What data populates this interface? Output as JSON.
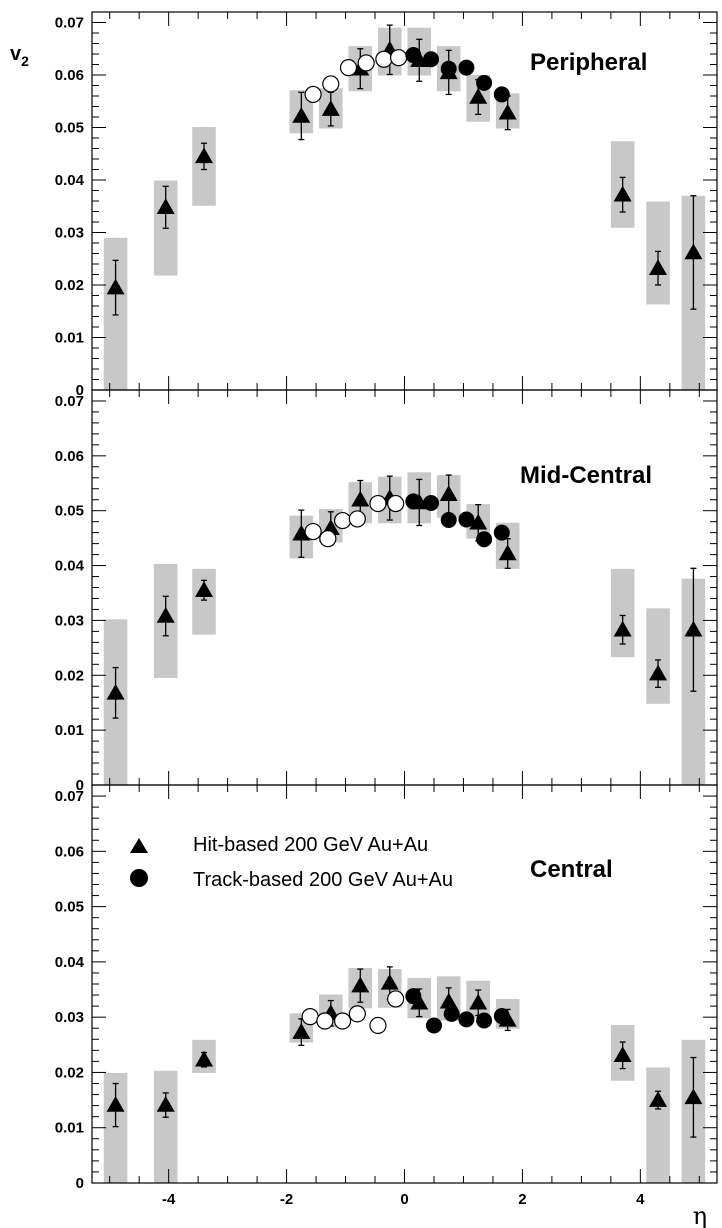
{
  "chart_data": {
    "type": "scatter",
    "xlabel": "η",
    "ylabel": "v",
    "ylabel_subscript": "2",
    "xlim": [
      -5.3,
      5.3
    ],
    "ylim": [
      0,
      0.072
    ],
    "x_tick_labels": [
      "-4",
      "-2",
      "0",
      "2",
      "4"
    ],
    "y_tick_labels": [
      "0",
      "0.01",
      "0.02",
      "0.03",
      "0.04",
      "0.05",
      "0.06",
      "0.07"
    ],
    "colors": {
      "systematic_band": "#c8c8c8",
      "marker": "#000000",
      "open_marker_fill": "#ffffff"
    },
    "legend": [
      {
        "marker": "triangle",
        "label": "Hit-based 200 GeV Au+Au"
      },
      {
        "marker": "circle",
        "label": "Track-based 200 GeV Au+Au"
      }
    ],
    "panels": [
      {
        "title": "Peripheral",
        "hit_based": [
          {
            "x": -4.9,
            "y": 0.0195,
            "err": 0.0052,
            "sys": [
              0.0,
              0.029
            ]
          },
          {
            "x": -4.05,
            "y": 0.0348,
            "err": 0.004,
            "sys": [
              0.0218,
              0.0399
            ]
          },
          {
            "x": -3.4,
            "y": 0.0445,
            "err": 0.0025,
            "sys": [
              0.0351,
              0.0501
            ]
          },
          {
            "x": -1.75,
            "y": 0.0522,
            "err": 0.0045,
            "sys": [
              0.0489,
              0.0571
            ]
          },
          {
            "x": -1.25,
            "y": 0.0535,
            "err": 0.0032,
            "sys": [
              0.0498,
              0.0575
            ]
          },
          {
            "x": -0.75,
            "y": 0.0612,
            "err": 0.0038,
            "sys": [
              0.0569,
              0.0655
            ]
          },
          {
            "x": -0.25,
            "y": 0.0648,
            "err": 0.0047,
            "sys": [
              0.0599,
              0.069
            ]
          },
          {
            "x": 0.25,
            "y": 0.0628,
            "err": 0.004,
            "sys": [
              0.0599,
              0.069
            ]
          },
          {
            "x": 0.75,
            "y": 0.0605,
            "err": 0.0042,
            "sys": [
              0.0569,
              0.0655
            ]
          },
          {
            "x": 1.25,
            "y": 0.0558,
            "err": 0.0033,
            "sys": [
              0.0511,
              0.06
            ]
          },
          {
            "x": 1.75,
            "y": 0.0528,
            "err": 0.0032,
            "sys": [
              0.0498,
              0.0565
            ]
          },
          {
            "x": 3.7,
            "y": 0.0372,
            "err": 0.0033,
            "sys": [
              0.0309,
              0.0474
            ]
          },
          {
            "x": 4.3,
            "y": 0.0232,
            "err": 0.0032,
            "sys": [
              0.0163,
              0.0359
            ]
          },
          {
            "x": 4.9,
            "y": 0.0262,
            "err": 0.0108,
            "sys": [
              0.0,
              0.037
            ]
          }
        ],
        "track_based_open": [
          {
            "x": -1.55,
            "y": 0.0563
          },
          {
            "x": -1.25,
            "y": 0.0583
          },
          {
            "x": -0.95,
            "y": 0.0614
          },
          {
            "x": -0.65,
            "y": 0.0623
          },
          {
            "x": -0.35,
            "y": 0.063
          },
          {
            "x": -0.1,
            "y": 0.0633
          }
        ],
        "track_based_filled": [
          {
            "x": 0.15,
            "y": 0.0638
          },
          {
            "x": 0.45,
            "y": 0.063
          },
          {
            "x": 0.75,
            "y": 0.0612
          },
          {
            "x": 1.05,
            "y": 0.0614
          },
          {
            "x": 1.35,
            "y": 0.0585
          },
          {
            "x": 1.65,
            "y": 0.0563
          }
        ]
      },
      {
        "title": "Mid-Central",
        "hit_based": [
          {
            "x": -4.9,
            "y": 0.0168,
            "err": 0.0046,
            "sys": [
              0.0,
              0.0302
            ]
          },
          {
            "x": -4.05,
            "y": 0.0308,
            "err": 0.0036,
            "sys": [
              0.0195,
              0.0403
            ]
          },
          {
            "x": -3.4,
            "y": 0.0355,
            "err": 0.0018,
            "sys": [
              0.0274,
              0.0394
            ]
          },
          {
            "x": -1.75,
            "y": 0.0458,
            "err": 0.0043,
            "sys": [
              0.0413,
              0.0491
            ]
          },
          {
            "x": -1.25,
            "y": 0.0468,
            "err": 0.003,
            "sys": [
              0.0442,
              0.0503
            ]
          },
          {
            "x": -0.75,
            "y": 0.052,
            "err": 0.0035,
            "sys": [
              0.0477,
              0.0552
            ]
          },
          {
            "x": -0.25,
            "y": 0.0523,
            "err": 0.004,
            "sys": [
              0.0477,
              0.0562
            ]
          },
          {
            "x": 0.25,
            "y": 0.0515,
            "err": 0.0042,
            "sys": [
              0.0477,
              0.057
            ]
          },
          {
            "x": 0.75,
            "y": 0.053,
            "err": 0.0035,
            "sys": [
              0.0487,
              0.0565
            ]
          },
          {
            "x": 1.25,
            "y": 0.0478,
            "err": 0.0033,
            "sys": [
              0.0449,
              0.0512
            ]
          },
          {
            "x": 1.75,
            "y": 0.0422,
            "err": 0.0027,
            "sys": [
              0.0394,
              0.0478
            ]
          },
          {
            "x": 3.7,
            "y": 0.0283,
            "err": 0.0026,
            "sys": [
              0.0233,
              0.0394
            ]
          },
          {
            "x": 4.3,
            "y": 0.0203,
            "err": 0.0025,
            "sys": [
              0.0148,
              0.0322
            ]
          },
          {
            "x": 4.9,
            "y": 0.0283,
            "err": 0.0112,
            "sys": [
              0.0,
              0.0376
            ]
          }
        ],
        "track_based_open": [
          {
            "x": -1.55,
            "y": 0.0462
          },
          {
            "x": -1.3,
            "y": 0.0449
          },
          {
            "x": -1.05,
            "y": 0.0482
          },
          {
            "x": -0.8,
            "y": 0.0485
          },
          {
            "x": -0.45,
            "y": 0.0513
          },
          {
            "x": -0.15,
            "y": 0.0513
          }
        ],
        "track_based_filled": [
          {
            "x": 0.15,
            "y": 0.0517
          },
          {
            "x": 0.45,
            "y": 0.0514
          },
          {
            "x": 0.75,
            "y": 0.0483
          },
          {
            "x": 1.05,
            "y": 0.0484
          },
          {
            "x": 1.35,
            "y": 0.0448
          },
          {
            "x": 1.65,
            "y": 0.046
          }
        ]
      },
      {
        "title": "Central",
        "hit_based": [
          {
            "x": -4.9,
            "y": 0.0141,
            "err": 0.0039,
            "sys": [
              0.0,
              0.0199
            ]
          },
          {
            "x": -4.05,
            "y": 0.0141,
            "err": 0.0022,
            "sys": [
              0.0,
              0.0203
            ]
          },
          {
            "x": -3.4,
            "y": 0.0223,
            "err": 0.0013,
            "sys": [
              0.0199,
              0.0259
            ]
          },
          {
            "x": -1.75,
            "y": 0.0273,
            "err": 0.0024,
            "sys": [
              0.0254,
              0.0307
            ]
          },
          {
            "x": -1.25,
            "y": 0.0307,
            "err": 0.0023,
            "sys": [
              0.0282,
              0.0341
            ]
          },
          {
            "x": -0.75,
            "y": 0.0357,
            "err": 0.003,
            "sys": [
              0.0316,
              0.0389
            ]
          },
          {
            "x": -0.25,
            "y": 0.0362,
            "err": 0.0029,
            "sys": [
              0.0317,
              0.0387
            ]
          },
          {
            "x": 0.25,
            "y": 0.0326,
            "err": 0.0025,
            "sys": [
              0.0298,
              0.0371
            ]
          },
          {
            "x": 0.75,
            "y": 0.0328,
            "err": 0.0025,
            "sys": [
              0.0294,
              0.0374
            ]
          },
          {
            "x": 1.25,
            "y": 0.0326,
            "err": 0.0023,
            "sys": [
              0.0299,
              0.0366
            ]
          },
          {
            "x": 1.75,
            "y": 0.0295,
            "err": 0.0019,
            "sys": [
              0.0279,
              0.0333
            ]
          },
          {
            "x": 3.7,
            "y": 0.0231,
            "err": 0.0024,
            "sys": [
              0.0185,
              0.0286
            ]
          },
          {
            "x": 4.3,
            "y": 0.015,
            "err": 0.0016,
            "sys": [
              0.0,
              0.0209
            ]
          },
          {
            "x": 4.9,
            "y": 0.0155,
            "err": 0.0072,
            "sys": [
              0.0,
              0.0259
            ]
          }
        ],
        "track_based_open": [
          {
            "x": -1.6,
            "y": 0.0301
          },
          {
            "x": -1.35,
            "y": 0.0293
          },
          {
            "x": -1.05,
            "y": 0.0293
          },
          {
            "x": -0.8,
            "y": 0.0306
          },
          {
            "x": -0.45,
            "y": 0.0285
          },
          {
            "x": -0.15,
            "y": 0.0333
          }
        ],
        "track_based_filled": [
          {
            "x": 0.15,
            "y": 0.0338
          },
          {
            "x": 0.5,
            "y": 0.0285
          },
          {
            "x": 0.8,
            "y": 0.0306
          },
          {
            "x": 1.05,
            "y": 0.0296
          },
          {
            "x": 1.35,
            "y": 0.0294
          },
          {
            "x": 1.65,
            "y": 0.0302
          }
        ]
      }
    ]
  }
}
